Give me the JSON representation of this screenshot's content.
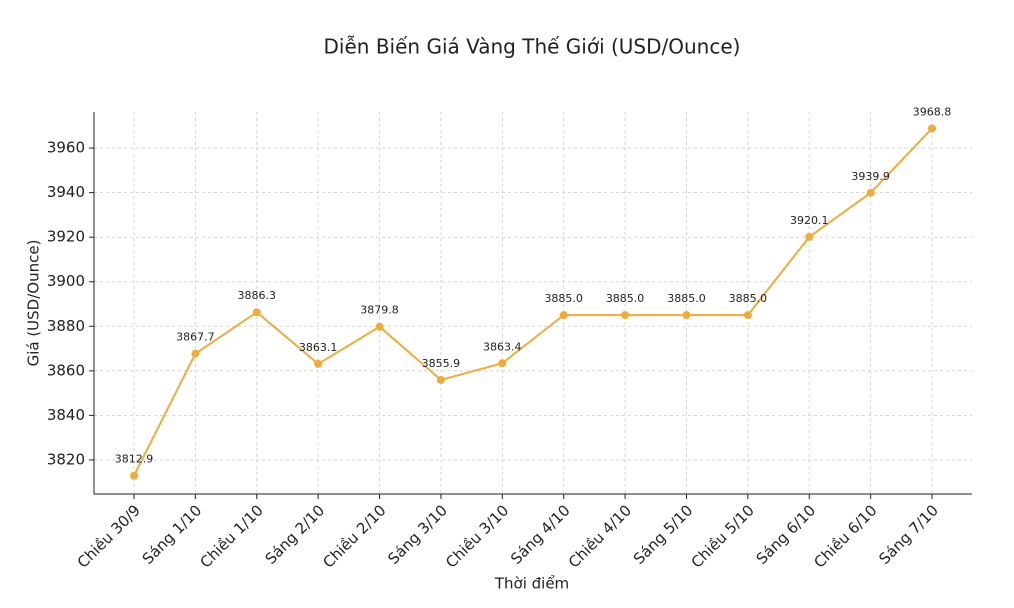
{
  "chart_data": {
    "type": "line",
    "title": "Diễn Biến Giá Vàng Thế Giới (USD/Ounce)",
    "x_label": "Thời điểm",
    "y_label": "Giá (USD/Ounce)",
    "categories": [
      "Chiều 30/9",
      "Sáng 1/10",
      "Chiều 1/10",
      "Sáng 2/10",
      "Chiều 2/10",
      "Sáng 3/10",
      "Chiều 3/10",
      "Sáng 4/10",
      "Chiều 4/10",
      "Sáng 5/10",
      "Chiều 5/10",
      "Sáng 6/10",
      "Chiều 6/10",
      "Sáng 7/10"
    ],
    "values": [
      3812.9,
      3867.7,
      3886.3,
      3863.1,
      3879.8,
      3855.9,
      3863.4,
      3885,
      3885,
      3885,
      3885,
      3920.1,
      3939.9,
      3968.8
    ],
    "value_labels": [
      "3812.9",
      "3867.7",
      "3886.3",
      "3863.1",
      "3879.8",
      "3855.9",
      "3863.4",
      "3885.0",
      "3885.0",
      "3885.0",
      "3885.0",
      "3920.1",
      "3939.9",
      "3968.8"
    ],
    "color": "#f0ab3a",
    "ylim": [
      3804.7,
      3976.2
    ],
    "yticks": [
      3820,
      3840,
      3860,
      3880,
      3900,
      3920,
      3940,
      3960
    ],
    "grid": true
  }
}
